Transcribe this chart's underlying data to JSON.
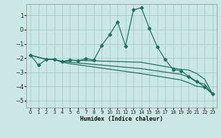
{
  "xlabel": "Humidex (Indice chaleur)",
  "background_color": "#cce8e4",
  "grid_color": "#a8cfc9",
  "line_color": "#1e6e62",
  "xlim": [
    -0.5,
    23.5
  ],
  "ylim": [
    -5.5,
    1.8
  ],
  "xticks": [
    0,
    1,
    2,
    3,
    4,
    5,
    6,
    7,
    8,
    9,
    10,
    11,
    12,
    13,
    14,
    15,
    16,
    17,
    18,
    19,
    20,
    21,
    22,
    23
  ],
  "yticks": [
    -5,
    -4,
    -3,
    -2,
    -1,
    0,
    1
  ],
  "series": [
    {
      "x": [
        0,
        1,
        2,
        3,
        4,
        5,
        6,
        7,
        8,
        9,
        10,
        11,
        12,
        13,
        14,
        15,
        16,
        17,
        18,
        19,
        20,
        21,
        22,
        23
      ],
      "y": [
        -1.8,
        -2.5,
        -2.1,
        -2.1,
        -2.25,
        -2.15,
        -2.2,
        -2.05,
        -2.15,
        -1.1,
        -0.35,
        0.55,
        -1.15,
        1.4,
        1.55,
        0.1,
        -1.2,
        -2.1,
        -2.8,
        -2.9,
        -3.3,
        -3.65,
        -4.05,
        -4.55
      ],
      "has_markers": true
    },
    {
      "x": [
        0,
        2,
        3,
        4,
        5,
        14,
        19,
        20,
        21,
        22,
        23
      ],
      "y": [
        -1.8,
        -2.1,
        -2.1,
        -2.25,
        -2.15,
        -2.3,
        -2.8,
        -2.85,
        -3.1,
        -3.5,
        -4.55
      ],
      "has_markers": false
    },
    {
      "x": [
        0,
        2,
        3,
        4,
        5,
        14,
        19,
        20,
        21,
        22,
        23
      ],
      "y": [
        -1.8,
        -2.1,
        -2.1,
        -2.25,
        -2.3,
        -2.75,
        -3.15,
        -3.35,
        -3.7,
        -3.85,
        -4.55
      ],
      "has_markers": false
    },
    {
      "x": [
        0,
        2,
        3,
        4,
        5,
        14,
        19,
        20,
        21,
        22,
        23
      ],
      "y": [
        -1.8,
        -2.1,
        -2.1,
        -2.3,
        -2.4,
        -3.1,
        -3.55,
        -3.75,
        -4.0,
        -4.05,
        -4.55
      ],
      "has_markers": false
    }
  ]
}
